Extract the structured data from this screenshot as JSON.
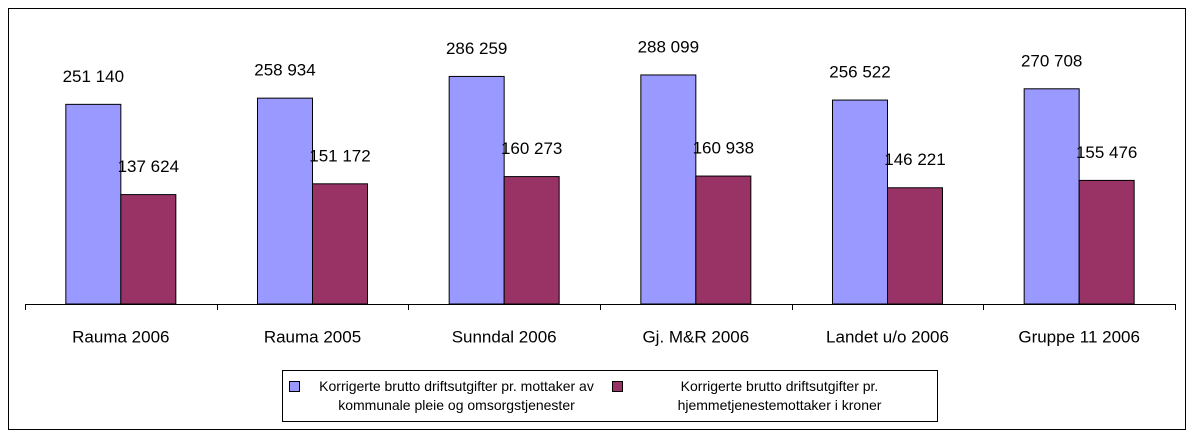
{
  "chart_data": {
    "type": "bar",
    "categories": [
      "Rauma 2006",
      "Rauma 2005",
      "Sunndal 2006",
      "Gj. M&R 2006",
      "Landet u/o 2006",
      "Gruppe 11 2006"
    ],
    "series": [
      {
        "name": "Korrigerte brutto driftsutgifter pr. mottaker av kommunale pleie og omsorgstjenester",
        "color": "#9999ff",
        "values": [
          251140,
          258934,
          286259,
          288099,
          256522,
          270708
        ],
        "value_labels": [
          "251 140",
          "258 934",
          "286 259",
          "288 099",
          "256 522",
          "270 708"
        ]
      },
      {
        "name": "Korrigerte brutto driftsutgifter pr. hjemmetjenestemottaker i kroner",
        "color": "#993366",
        "values": [
          137624,
          151172,
          160273,
          160938,
          146221,
          155476
        ],
        "value_labels": [
          "137 624",
          "151 172",
          "160 273",
          "160 938",
          "146 221",
          "155 476"
        ]
      }
    ],
    "legend": "bottom"
  }
}
